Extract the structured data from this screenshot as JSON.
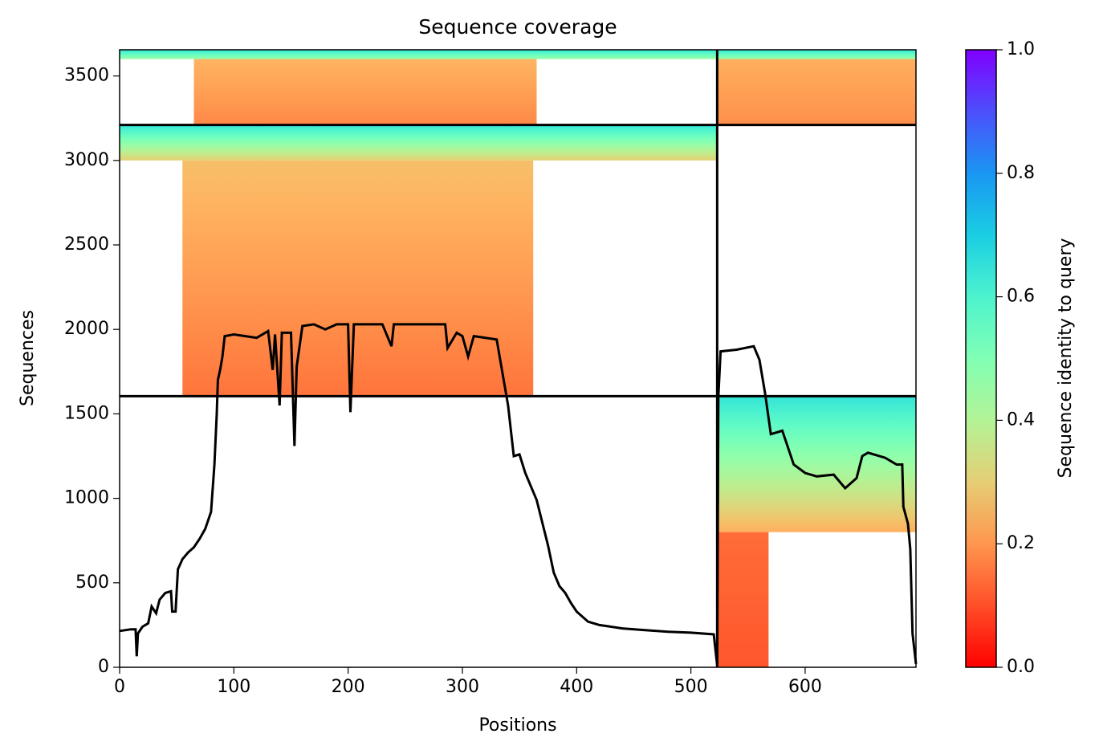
{
  "chart_data": {
    "type": "coverage",
    "title": "Sequence coverage",
    "x_label": "Positions",
    "y_label": "Sequences",
    "colorbar_label": "Sequence identity to query",
    "xlim": [
      0,
      697
    ],
    "ylim": [
      0,
      3655
    ],
    "xticks": [
      0,
      100,
      200,
      300,
      400,
      500,
      600
    ],
    "yticks": [
      0,
      500,
      1000,
      1500,
      2000,
      2500,
      3000,
      3500
    ],
    "colorbar_lim": [
      0,
      1
    ],
    "colorbar_ticks": [
      {
        "value": 0,
        "label": "0.0"
      },
      {
        "value": 0.2,
        "label": "0.2"
      },
      {
        "value": 0.4,
        "label": "0.4"
      },
      {
        "value": 0.6,
        "label": "0.6"
      },
      {
        "value": 0.8,
        "label": "0.8"
      },
      {
        "value": 1,
        "label": "1.0"
      }
    ],
    "colormap": "rainbow",
    "blocks": [
      {
        "x": [
          55,
          362
        ],
        "y": [
          1605,
          3000
        ],
        "identity": [
          0.15,
          0.27
        ]
      },
      {
        "x": [
          0,
          523
        ],
        "y": [
          3000,
          3210
        ],
        "identity": [
          0.3,
          0.65
        ]
      },
      {
        "x": [
          65,
          365
        ],
        "y": [
          3210,
          3600
        ],
        "identity": [
          0.18,
          0.25
        ]
      },
      {
        "x": [
          0,
          523
        ],
        "y": [
          3600,
          3655
        ],
        "identity": [
          0.45,
          0.65
        ]
      },
      {
        "x": [
          523,
          697
        ],
        "y": [
          3210,
          3600
        ],
        "identity": [
          0.19,
          0.24
        ]
      },
      {
        "x": [
          523,
          697
        ],
        "y": [
          3600,
          3655
        ],
        "identity": [
          0.45,
          0.65
        ]
      },
      {
        "x": [
          523,
          697
        ],
        "y": [
          800,
          1605
        ],
        "identity": [
          0.24,
          0.65
        ]
      },
      {
        "x": [
          523,
          568
        ],
        "y": [
          0,
          800
        ],
        "identity": [
          0.11,
          0.14
        ]
      }
    ],
    "hlines": [
      1605,
      3210
    ],
    "vlines": [
      523
    ],
    "coverage": {
      "color": "#000000",
      "x": [
        0,
        10,
        14,
        15,
        16,
        20,
        25,
        28,
        32,
        35,
        40,
        45,
        46,
        49,
        51,
        55,
        60,
        65,
        70,
        75,
        80,
        83,
        85,
        86,
        88,
        90,
        92,
        100,
        110,
        120,
        130,
        134,
        136,
        140,
        142,
        150,
        153,
        155,
        160,
        170,
        180,
        190,
        200,
        202,
        205,
        230,
        238,
        240,
        285,
        287,
        295,
        300,
        305,
        310,
        330,
        340,
        345,
        350,
        355,
        365,
        375,
        380,
        385,
        390,
        395,
        400,
        410,
        420,
        440,
        460,
        480,
        500,
        520,
        523,
        524,
        526,
        540,
        555,
        560,
        565,
        570,
        580,
        590,
        600,
        610,
        625,
        635,
        645,
        650,
        655,
        670,
        680,
        685,
        686,
        690,
        692,
        694,
        697
      ],
      "y": [
        215,
        225,
        225,
        65,
        200,
        240,
        260,
        360,
        320,
        400,
        440,
        450,
        330,
        330,
        580,
        640,
        680,
        710,
        760,
        820,
        920,
        1200,
        1500,
        1700,
        1760,
        1840,
        1960,
        1970,
        1960,
        1950,
        1990,
        1760,
        1970,
        1550,
        1980,
        1980,
        1310,
        1780,
        2020,
        2030,
        2000,
        2030,
        2030,
        1510,
        2030,
        2030,
        1900,
        2030,
        2030,
        1890,
        1980,
        1960,
        1840,
        1960,
        1940,
        1550,
        1250,
        1260,
        1150,
        990,
        720,
        560,
        480,
        440,
        380,
        330,
        270,
        250,
        230,
        220,
        210,
        205,
        195,
        10,
        1600,
        1870,
        1880,
        1900,
        1820,
        1620,
        1380,
        1400,
        1200,
        1150,
        1130,
        1140,
        1060,
        1120,
        1250,
        1270,
        1240,
        1200,
        1200,
        950,
        850,
        700,
        200,
        20
      ]
    }
  }
}
